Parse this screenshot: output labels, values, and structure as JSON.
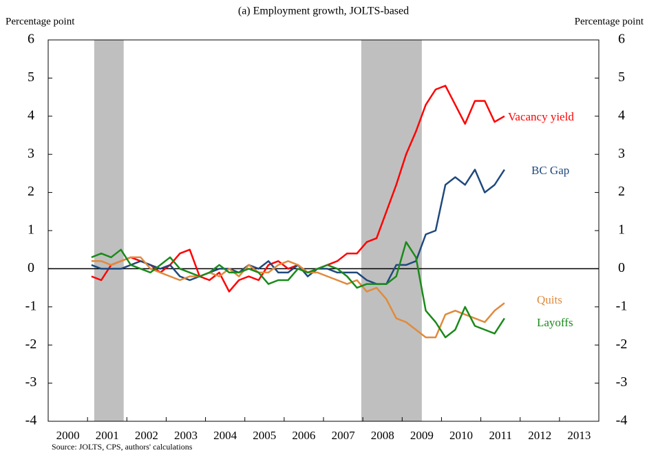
{
  "chart_data": {
    "type": "line",
    "title": "(a) Employment growth, JOLTS-based",
    "y_label": "Percentage point",
    "y2_label": "Percentage point",
    "source": "Source: JOLTS, CPS, authors' calculations",
    "xlim": [
      2000,
      2014
    ],
    "xticks": [
      2000,
      2001,
      2002,
      2003,
      2004,
      2005,
      2006,
      2007,
      2008,
      2009,
      2010,
      2011,
      2012,
      2013
    ],
    "ylim": [
      -4,
      6
    ],
    "yticks": [
      -4,
      -3,
      -2,
      -1,
      0,
      1,
      2,
      3,
      4,
      5,
      6
    ],
    "y2lim": [
      -4,
      6
    ],
    "y2ticks": [
      -4,
      -3,
      -2,
      -1,
      0,
      1,
      2,
      3,
      4,
      5,
      6
    ],
    "shaded_periods": [
      [
        2001.17,
        2001.92
      ],
      [
        2007.96,
        2009.5
      ]
    ],
    "x": [
      2001.1,
      2001.35,
      2001.6,
      2001.85,
      2002.1,
      2002.35,
      2002.6,
      2002.85,
      2003.1,
      2003.35,
      2003.6,
      2003.85,
      2004.1,
      2004.35,
      2004.6,
      2004.85,
      2005.1,
      2005.35,
      2005.6,
      2005.85,
      2006.1,
      2006.35,
      2006.6,
      2006.85,
      2007.1,
      2007.35,
      2007.6,
      2007.85,
      2008.1,
      2008.35,
      2008.6,
      2008.85,
      2009.1,
      2009.35,
      2009.6,
      2009.85,
      2010.1,
      2010.35,
      2010.6,
      2010.85,
      2011.1,
      2011.35,
      2011.6
    ],
    "series": [
      {
        "name": "Vacancy yield",
        "color": "#ff0000",
        "values": [
          -0.2,
          -0.3,
          0.1,
          0.2,
          0.3,
          0.2,
          0.1,
          -0.1,
          0.1,
          0.4,
          0.5,
          -0.2,
          -0.3,
          -0.1,
          -0.6,
          -0.3,
          -0.2,
          -0.3,
          0.1,
          0.2,
          0.0,
          0.1,
          -0.1,
          0.0,
          0.1,
          0.2,
          0.4,
          0.4,
          0.7,
          0.8,
          1.5,
          2.2,
          3.0,
          3.6,
          4.3,
          4.7,
          4.8,
          4.3,
          3.8,
          4.4,
          4.4,
          3.85,
          4.0
        ]
      },
      {
        "name": "BC Gap",
        "color": "#1f497d",
        "values": [
          0.1,
          0.0,
          0.0,
          0.0,
          0.1,
          0.2,
          0.1,
          0.0,
          0.1,
          -0.2,
          -0.3,
          -0.2,
          -0.1,
          0.0,
          0.0,
          -0.1,
          0.1,
          0.0,
          0.2,
          -0.1,
          -0.1,
          0.1,
          -0.2,
          0.0,
          0.0,
          -0.1,
          -0.1,
          -0.1,
          -0.3,
          -0.4,
          -0.4,
          0.1,
          0.1,
          0.2,
          0.9,
          1.0,
          2.2,
          2.4,
          2.2,
          2.6,
          2.0,
          2.2,
          2.6
        ]
      },
      {
        "name": "Quits",
        "color": "#e08a3c",
        "values": [
          0.2,
          0.2,
          0.1,
          0.2,
          0.3,
          0.3,
          0.0,
          -0.1,
          -0.2,
          -0.3,
          -0.2,
          -0.2,
          -0.1,
          -0.2,
          0.0,
          -0.2,
          0.1,
          -0.1,
          -0.1,
          0.1,
          0.2,
          0.1,
          -0.1,
          -0.1,
          -0.2,
          -0.3,
          -0.4,
          -0.3,
          -0.6,
          -0.5,
          -0.8,
          -1.3,
          -1.4,
          -1.6,
          -1.8,
          -1.8,
          -1.2,
          -1.1,
          -1.2,
          -1.3,
          -1.4,
          -1.1,
          -0.9
        ]
      },
      {
        "name": "Layoffs",
        "color": "#1a8a1a",
        "values": [
          0.3,
          0.4,
          0.3,
          0.5,
          0.1,
          0.0,
          -0.1,
          0.1,
          0.3,
          0.0,
          -0.1,
          -0.2,
          -0.1,
          0.1,
          -0.1,
          -0.1,
          0.0,
          -0.1,
          -0.4,
          -0.3,
          -0.3,
          0.0,
          -0.1,
          0.0,
          0.1,
          0.0,
          -0.2,
          -0.5,
          -0.4,
          -0.4,
          -0.4,
          -0.2,
          0.7,
          0.3,
          -1.1,
          -1.4,
          -1.8,
          -1.6,
          -1.0,
          -1.5,
          -1.6,
          -1.7,
          -1.3
        ]
      }
    ]
  }
}
